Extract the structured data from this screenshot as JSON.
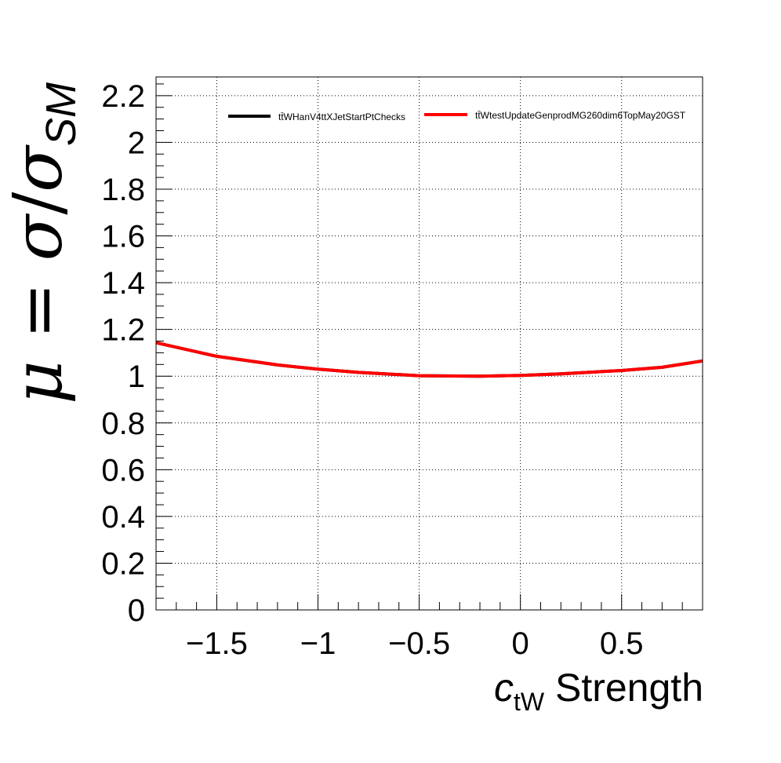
{
  "chart_data": {
    "type": "line",
    "xlim": [
      -1.8,
      0.9
    ],
    "ylim": [
      0,
      2.28
    ],
    "grid": true,
    "legend_placement": "top",
    "xlabel": {
      "main": "c",
      "subscript": "tW",
      "suffix": " Strength"
    },
    "ylabel": {
      "mu": "μ",
      "eq": " = ",
      "sigma": "σ",
      "slash": "/",
      "sigma2": "σ",
      "subscript": "SM"
    },
    "x_tick_labels": [
      {
        "value": -1.5,
        "label": "−1.5"
      },
      {
        "value": -1.0,
        "label": "−1"
      },
      {
        "value": -0.5,
        "label": "−0.5"
      },
      {
        "value": 0.0,
        "label": "0"
      },
      {
        "value": 0.5,
        "label": "0.5"
      }
    ],
    "y_tick_labels": [
      {
        "value": 0,
        "label": "0"
      },
      {
        "value": 0.2,
        "label": "0.2"
      },
      {
        "value": 0.4,
        "label": "0.4"
      },
      {
        "value": 0.6,
        "label": "0.6"
      },
      {
        "value": 0.8,
        "label": "0.8"
      },
      {
        "value": 1.0,
        "label": "1"
      },
      {
        "value": 1.2,
        "label": "1.2"
      },
      {
        "value": 1.4,
        "label": "1.4"
      },
      {
        "value": 1.6,
        "label": "1.6"
      },
      {
        "value": 1.8,
        "label": "1.8"
      },
      {
        "value": 2.0,
        "label": "2"
      },
      {
        "value": 2.2,
        "label": "2.2"
      }
    ],
    "series": [
      {
        "name": "tt̄WHanV4ttXJetStartPtChecks",
        "color": "#000000",
        "x": [
          -1.8,
          -1.5,
          -1.2,
          -1.0,
          -0.8,
          -0.5,
          -0.2,
          0.0,
          0.2,
          0.5,
          0.7,
          0.9
        ],
        "y": [
          1.143,
          1.085,
          1.048,
          1.03,
          1.016,
          1.002,
          1.0,
          1.003,
          1.01,
          1.024,
          1.038,
          1.065
        ]
      },
      {
        "name": "tt̄WtestUpdateGenprodMG260dim6TopMay20GST",
        "color": "#ff0000",
        "x": [
          -1.8,
          -1.5,
          -1.2,
          -1.0,
          -0.8,
          -0.5,
          -0.2,
          0.0,
          0.2,
          0.5,
          0.7,
          0.9
        ],
        "y": [
          1.143,
          1.085,
          1.048,
          1.03,
          1.016,
          1.002,
          1.0,
          1.003,
          1.01,
          1.024,
          1.038,
          1.065
        ]
      }
    ]
  }
}
